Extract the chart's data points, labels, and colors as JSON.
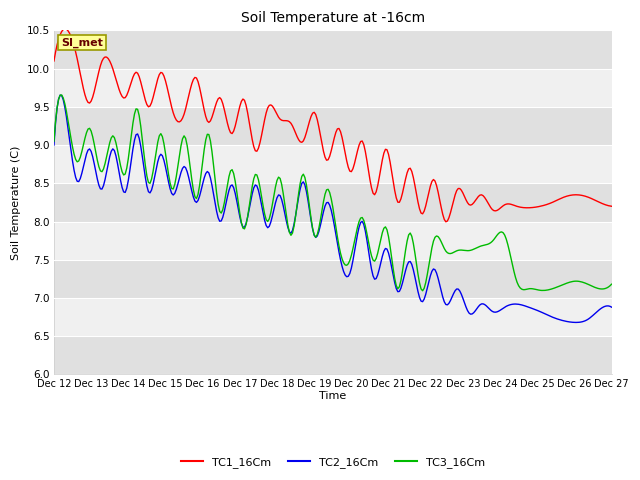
{
  "title": "Soil Temperature at -16cm",
  "xlabel": "Time",
  "ylabel": "Soil Temperature (C)",
  "ylim": [
    6.0,
    10.5
  ],
  "yticks": [
    6.0,
    6.5,
    7.0,
    7.5,
    8.0,
    8.5,
    9.0,
    9.5,
    10.0,
    10.5
  ],
  "xlabels": [
    "Dec 12",
    "Dec 13",
    "Dec 14",
    "Dec 15",
    "Dec 16",
    "Dec 17",
    "Dec 18",
    "Dec 19",
    "Dec 20",
    "Dec 21",
    "Dec 22",
    "Dec 23",
    "Dec 24",
    "Dec 25",
    "Dec 26",
    "Dec 27"
  ],
  "annotation_text": "SI_met",
  "annotation_color": "#660000",
  "annotation_bg": "#FFFF99",
  "annotation_edge": "#999900",
  "fig_bg": "#FFFFFF",
  "plot_bg_light": "#F0F0F0",
  "plot_bg_dark": "#E0E0E0",
  "colors": {
    "TC1": "#FF0000",
    "TC2": "#0000EE",
    "TC3": "#00BB00"
  },
  "legend_labels": [
    "TC1_16Cm",
    "TC2_16Cm",
    "TC3_16Cm"
  ],
  "TC1": [
    10.1,
    10.52,
    10.1,
    9.55,
    10.08,
    9.98,
    9.62,
    9.95,
    9.5,
    9.95,
    9.45,
    9.42,
    9.88,
    9.3,
    9.62,
    9.15,
    9.6,
    8.92,
    9.48,
    9.35,
    9.28,
    9.05,
    9.42,
    8.8,
    9.22,
    8.65,
    9.05,
    8.35,
    8.95,
    8.25,
    8.7,
    8.1,
    8.55,
    8.0,
    8.42,
    8.22,
    8.35,
    8.15,
    8.22,
    8.2,
    8.18,
    8.2,
    8.25,
    8.32,
    8.35,
    8.32,
    8.25,
    8.2
  ],
  "TC2": [
    9.0,
    9.42,
    8.52,
    8.95,
    8.42,
    8.95,
    8.38,
    9.15,
    8.38,
    8.88,
    8.35,
    8.72,
    8.25,
    8.65,
    8.0,
    8.48,
    7.92,
    8.48,
    7.92,
    8.35,
    7.85,
    8.52,
    7.8,
    8.25,
    7.62,
    7.35,
    8.0,
    7.25,
    7.65,
    7.08,
    7.48,
    6.95,
    7.38,
    6.92,
    7.12,
    6.8,
    6.92,
    6.82,
    6.88,
    6.92,
    6.88,
    6.82,
    6.75,
    6.7,
    6.68,
    6.72,
    6.85,
    6.88
  ],
  "TC3": [
    9.05,
    9.48,
    8.78,
    9.22,
    8.65,
    9.12,
    8.62,
    9.48,
    8.5,
    9.15,
    8.42,
    9.12,
    8.3,
    9.15,
    8.12,
    8.68,
    7.9,
    8.62,
    8.0,
    8.58,
    7.82,
    8.62,
    7.8,
    8.42,
    7.7,
    7.52,
    8.05,
    7.48,
    7.92,
    7.12,
    7.85,
    7.1,
    7.75,
    7.62,
    7.62,
    7.62,
    7.68,
    7.75,
    7.82,
    7.22,
    7.12,
    7.1,
    7.12,
    7.18,
    7.22,
    7.18,
    7.12,
    7.18
  ]
}
